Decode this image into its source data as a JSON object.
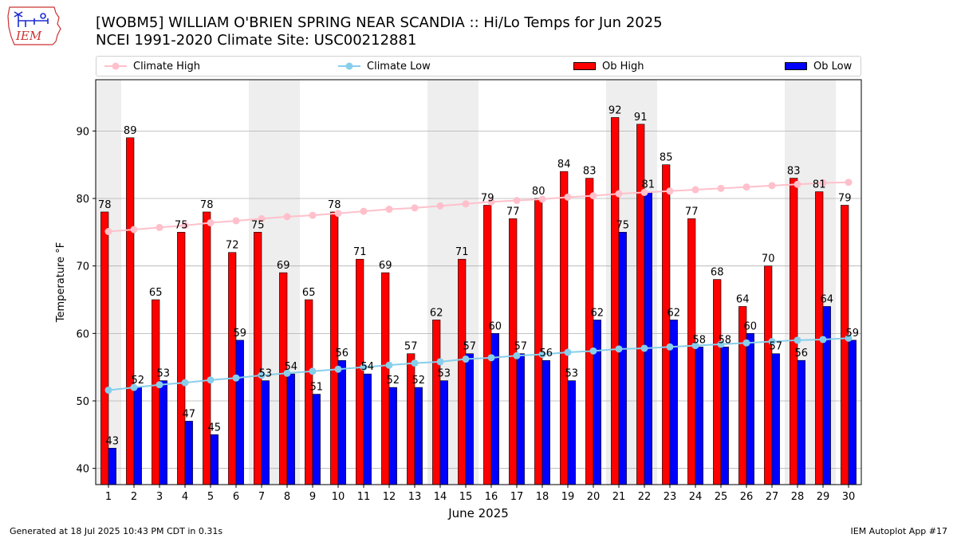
{
  "header": {
    "title_line1": "[WOBM5] WILLIAM O'BRIEN SPRING NEAR SCANDIA :: Hi/Lo Temps for Jun 2025",
    "title_line2": "NCEI 1991-2020 Climate Site: USC00212881",
    "logo_text": "IEM"
  },
  "footer": {
    "left": "Generated at 18 Jul 2025 10:43 PM CDT in 0.31s",
    "right": "IEM Autoplot App #17"
  },
  "legend": {
    "placement": "top",
    "items": [
      {
        "label": "Climate High",
        "kind": "line",
        "color": "#ffc0cb"
      },
      {
        "label": "Climate Low",
        "kind": "line",
        "color": "#87ceeb"
      },
      {
        "label": "Ob High",
        "kind": "bar",
        "color": "#ff0000"
      },
      {
        "label": "Ob Low",
        "kind": "bar",
        "color": "#0000ff"
      }
    ]
  },
  "chart_data": {
    "type": "bar",
    "xlabel": "June 2025",
    "ylabel": "Temperature °F",
    "ylim": [
      37.6,
      97.6
    ],
    "yticks": [
      40,
      50,
      60,
      70,
      80,
      90
    ],
    "grid": "y",
    "weekend_shading_color": "#eeeeee",
    "shaded_days": [
      [
        1,
        1
      ],
      [
        7,
        8
      ],
      [
        14,
        15
      ],
      [
        21,
        22
      ],
      [
        28,
        29
      ]
    ],
    "categories": [
      "1",
      "2",
      "3",
      "4",
      "5",
      "6",
      "7",
      "8",
      "9",
      "10",
      "11",
      "12",
      "13",
      "14",
      "15",
      "16",
      "17",
      "18",
      "19",
      "20",
      "21",
      "22",
      "23",
      "24",
      "25",
      "26",
      "27",
      "28",
      "29",
      "30"
    ],
    "series": [
      {
        "name": "Ob High",
        "kind": "bar",
        "color": "#ff0000",
        "values": [
          78,
          89,
          65,
          75,
          78,
          72,
          75,
          69,
          65,
          78,
          71,
          69,
          57,
          62,
          71,
          79,
          77,
          80,
          84,
          83,
          92,
          91,
          85,
          77,
          68,
          64,
          70,
          83,
          81,
          79
        ]
      },
      {
        "name": "Ob Low",
        "kind": "bar",
        "color": "#0000ff",
        "values": [
          43,
          52,
          53,
          47,
          45,
          59,
          53,
          54,
          51,
          56,
          54,
          52,
          52,
          53,
          57,
          60,
          57,
          56,
          53,
          62,
          75,
          81,
          62,
          58,
          58,
          60,
          57,
          56,
          64,
          59
        ]
      },
      {
        "name": "Climate High",
        "kind": "line",
        "color": "#ffc0cb",
        "values": [
          75.1,
          75.4,
          75.7,
          76.0,
          76.4,
          76.7,
          77.0,
          77.3,
          77.5,
          77.8,
          78.1,
          78.4,
          78.6,
          78.9,
          79.2,
          79.5,
          79.7,
          79.9,
          80.2,
          80.4,
          80.7,
          80.9,
          81.1,
          81.3,
          81.5,
          81.7,
          81.9,
          82.1,
          82.3,
          82.4
        ]
      },
      {
        "name": "Climate Low",
        "kind": "line",
        "color": "#87ceeb",
        "values": [
          51.6,
          52.0,
          52.4,
          52.7,
          53.1,
          53.4,
          53.8,
          54.1,
          54.4,
          54.7,
          55.0,
          55.3,
          55.6,
          55.8,
          56.2,
          56.4,
          56.7,
          56.9,
          57.2,
          57.4,
          57.7,
          57.8,
          58.0,
          58.2,
          58.4,
          58.6,
          58.8,
          59.0,
          59.1,
          59.3
        ]
      }
    ]
  }
}
